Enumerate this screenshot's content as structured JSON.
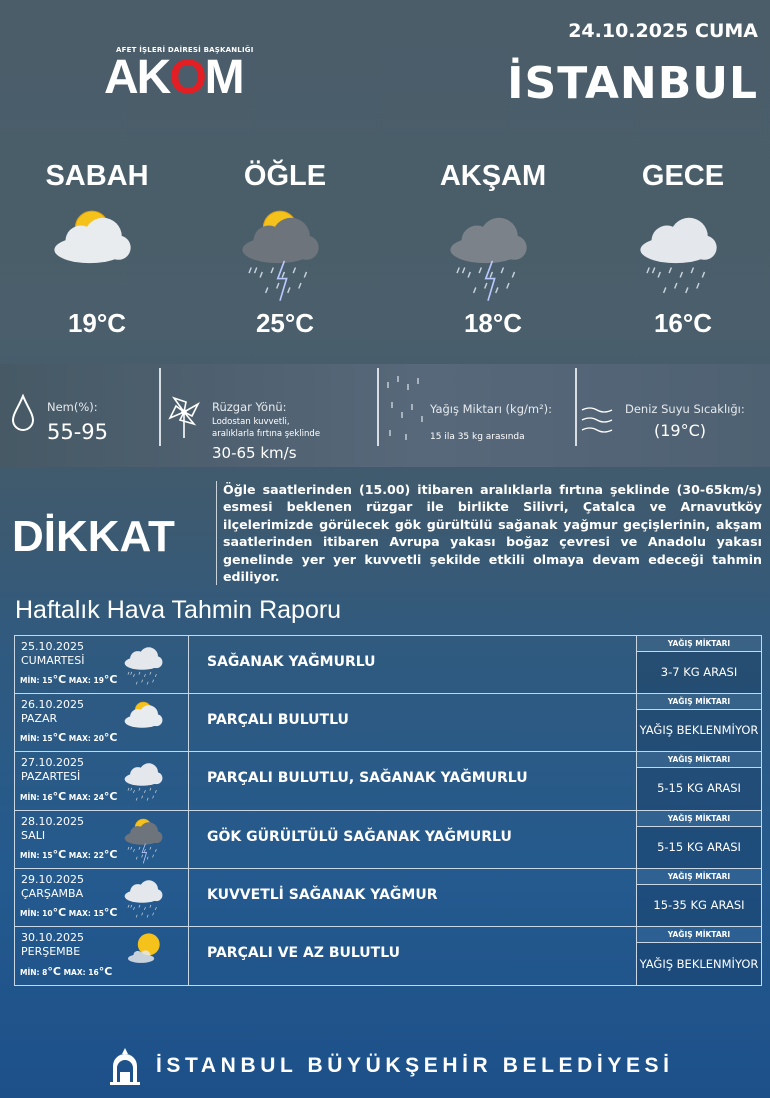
{
  "header": {
    "date": "24.10.2025 CUMA",
    "city": "İSTANBUL",
    "logo_subtitle": "AFET İŞLERİ DAİRESİ BAŞKANLIĞI",
    "logo_text": "AKOM"
  },
  "periods": [
    {
      "name": "SABAH",
      "temp": "19°C",
      "icon": "sun-cloud"
    },
    {
      "name": "ÖĞLE",
      "temp": "25°C",
      "icon": "sun-storm-cloud"
    },
    {
      "name": "AKŞAM",
      "temp": "18°C",
      "icon": "storm-cloud"
    },
    {
      "name": "GECE",
      "temp": "16°C",
      "icon": "rain-cloud"
    }
  ],
  "info": {
    "humidity_label": "Nem(%):",
    "humidity_value": "55-95",
    "wind_label": "Rüzgar Yönü:",
    "wind_desc1": "Lodostan kuvvetli,",
    "wind_desc2": "aralıklarla fırtına şeklinde",
    "wind_value": "30-65 km/s",
    "rain_label": "Yağış Miktarı (kg/m²):",
    "rain_value": "15 ila 35 kg arasında",
    "sea_label": "Deniz Suyu Sıcaklığı:",
    "sea_value": "(19°C)"
  },
  "warning": {
    "title": "DİKKAT",
    "text": "Öğle saatlerinden (15.00) itibaren aralıklarla fırtına şeklinde (30-65km/s) esmesi beklenen rüzgar ile birlikte Silivri, Çatalca ve Arnavutköy ilçelerimizde görülecek gök gürültülü sağanak yağmur geçişlerinin, akşam saatlerinden itibaren Avrupa yakası boğaz çevresi ve Anadolu yakası genelinde yer yer kuvvetli şekilde etkili olmaya devam edeceği tahmin ediliyor."
  },
  "weekly": {
    "title": "Haftalık Hava Tahmin Raporu",
    "min_label": "MİN:",
    "max_label": "MAX:",
    "rain_header": "YAĞIŞ MİKTARI",
    "days": [
      {
        "date": "25.10.2025",
        "day": "CUMARTESİ",
        "min": "15",
        "max": "19",
        "icon": "rain-cloud",
        "desc": "SAĞANAK YAĞMURLU",
        "rain": "3-7 KG ARASI"
      },
      {
        "date": "26.10.2025",
        "day": "PAZAR",
        "min": "15",
        "max": "20",
        "icon": "sun-cloud",
        "desc": "PARÇALI BULUTLU",
        "rain": "YAĞIŞ BEKLENMİYOR"
      },
      {
        "date": "27.10.2025",
        "day": "PAZARTESİ",
        "min": "16",
        "max": "24",
        "icon": "rain-cloud",
        "desc": "PARÇALI BULUTLU, SAĞANAK YAĞMURLU",
        "rain": "5-15 KG ARASI"
      },
      {
        "date": "28.10.2025",
        "day": "SALI",
        "min": "15",
        "max": "22",
        "icon": "sun-storm-cloud",
        "desc": "GÖK GÜRÜLTÜLÜ SAĞANAK YAĞMURLU",
        "rain": "5-15 KG ARASI"
      },
      {
        "date": "29.10.2025",
        "day": "ÇARŞAMBA",
        "min": "10",
        "max": "15",
        "icon": "rain-cloud",
        "desc": "KUVVETLİ SAĞANAK YAĞMUR",
        "rain": "15-35 KG ARASI"
      },
      {
        "date": "30.10.2025",
        "day": "PERŞEMBE",
        "min": "8",
        "max": "16",
        "icon": "sun-small-cloud",
        "desc": "PARÇALI VE AZ BULUTLU",
        "rain": "YAĞIŞ BEKLENMİYOR"
      }
    ]
  },
  "footer": {
    "text": "İSTANBUL BÜYÜKŞEHİR BELEDİYESİ"
  },
  "colors": {
    "logo_red": "#e31e24",
    "sun": "#f5c21b"
  }
}
